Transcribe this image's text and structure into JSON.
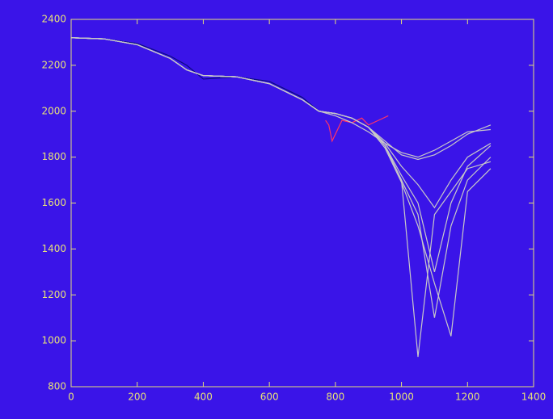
{
  "chart_data": {
    "type": "line",
    "xlim": [
      0,
      1400
    ],
    "xticks": [
      0,
      200,
      400,
      600,
      800,
      1000,
      1200,
      1400
    ],
    "ylim": [
      800,
      2400
    ],
    "yticks": [
      800,
      1000,
      1200,
      1400,
      1600,
      1800,
      2000,
      2200,
      2400
    ],
    "background": "#3a14e8",
    "axis_color": "#e6e07a",
    "series": [
      {
        "color": "#0c0c80",
        "x": [
          0,
          100,
          200,
          300,
          350,
          400,
          500,
          600,
          700,
          750
        ],
        "values": [
          2320,
          2315,
          2295,
          2240,
          2200,
          2140,
          2150,
          2130,
          2060,
          2000
        ]
      },
      {
        "color": "#ff3366",
        "x": [
          770,
          780,
          790,
          800,
          820,
          850,
          880,
          900,
          930,
          960
        ],
        "values": [
          1960,
          1940,
          1870,
          1900,
          1960,
          1950,
          1970,
          1940,
          1960,
          1980
        ]
      },
      {
        "color": "#c8c8c8",
        "x": [
          0,
          100,
          200,
          300,
          350,
          400,
          500,
          600,
          700,
          750,
          800,
          850,
          900,
          950,
          1000,
          1050,
          1100,
          1150,
          1200,
          1270
        ],
        "values": [
          2320,
          2315,
          2290,
          2230,
          2180,
          2155,
          2150,
          2120,
          2050,
          2000,
          1990,
          1970,
          1930,
          1870,
          1810,
          1790,
          1810,
          1850,
          1900,
          1940
        ]
      },
      {
        "color": "#c8c8c8",
        "x": [
          0,
          100,
          200,
          300,
          350,
          400,
          500,
          600,
          700,
          750,
          800,
          850,
          900,
          950,
          1000,
          1050,
          1100,
          1150,
          1200,
          1270
        ],
        "values": [
          2320,
          2315,
          2290,
          2230,
          2180,
          2155,
          2150,
          2120,
          2050,
          2000,
          1980,
          1950,
          1910,
          1860,
          1820,
          1800,
          1830,
          1870,
          1910,
          1920
        ]
      },
      {
        "color": "#c8c8c8",
        "x": [
          0,
          100,
          200,
          300,
          350,
          400,
          500,
          600,
          700,
          750,
          800,
          850,
          900,
          950,
          1000,
          1050,
          1100,
          1150,
          1200,
          1270
        ],
        "values": [
          2320,
          2315,
          2290,
          2230,
          2180,
          2155,
          2150,
          2120,
          2050,
          2000,
          1990,
          1970,
          1930,
          1860,
          1760,
          1680,
          1580,
          1700,
          1800,
          1860
        ]
      },
      {
        "color": "#c8c8c8",
        "x": [
          0,
          100,
          200,
          300,
          350,
          400,
          500,
          600,
          700,
          750,
          800,
          850,
          900,
          950,
          1000,
          1050,
          1100,
          1150,
          1200,
          1270
        ],
        "values": [
          2320,
          2315,
          2290,
          2230,
          2180,
          2155,
          2150,
          2120,
          2050,
          2000,
          1990,
          1970,
          1930,
          1850,
          1720,
          1600,
          1300,
          1600,
          1760,
          1850
        ]
      },
      {
        "color": "#c8c8c8",
        "x": [
          0,
          100,
          200,
          300,
          350,
          400,
          500,
          600,
          700,
          750,
          800,
          850,
          900,
          950,
          1000,
          1050,
          1100,
          1150,
          1200,
          1270
        ],
        "values": [
          2320,
          2315,
          2290,
          2230,
          2180,
          2155,
          2150,
          2120,
          2050,
          2000,
          1990,
          1970,
          1930,
          1850,
          1700,
          1550,
          1100,
          1500,
          1700,
          1800
        ]
      },
      {
        "color": "#c8c8c8",
        "x": [
          0,
          100,
          200,
          300,
          350,
          400,
          500,
          600,
          700,
          750,
          800,
          850,
          900,
          950,
          1000,
          1050,
          1100,
          1150,
          1200,
          1270
        ],
        "values": [
          2320,
          2315,
          2290,
          2230,
          2180,
          2155,
          2150,
          2120,
          2050,
          2000,
          1990,
          1970,
          1930,
          1840,
          1690,
          1500,
          1250,
          1020,
          1650,
          1750
        ]
      },
      {
        "color": "#c8c8c8",
        "x": [
          0,
          100,
          200,
          300,
          350,
          400,
          500,
          600,
          700,
          750,
          800,
          850,
          900,
          950,
          1000,
          1050,
          1100,
          1150,
          1200,
          1270
        ],
        "values": [
          2320,
          2315,
          2290,
          2230,
          2180,
          2155,
          2150,
          2120,
          2050,
          2000,
          1990,
          1970,
          1930,
          1850,
          1700,
          930,
          1550,
          1650,
          1750,
          1780
        ]
      }
    ]
  }
}
